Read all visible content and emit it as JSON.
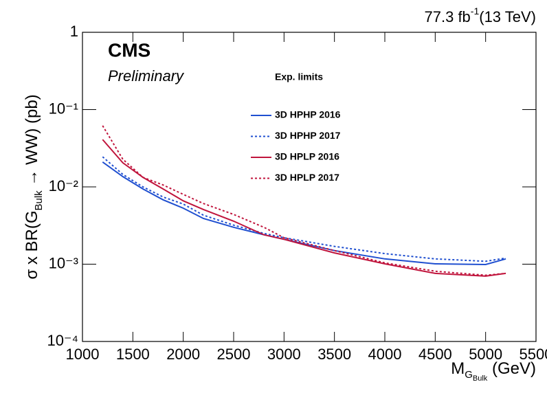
{
  "chart_data": {
    "type": "line",
    "lumi": [
      "77.3 fb",
      "-1",
      "(13 TeV)"
    ],
    "experiment": "CMS",
    "status": "Preliminary",
    "legend_title": "Exp. limits",
    "ylabel": [
      "σ x BR(G",
      "Bulk",
      " → WW) (pb)"
    ],
    "xlabel": [
      "M",
      "G",
      "Bulk",
      " (GeV)"
    ],
    "ylog": true,
    "xlim": [
      1000,
      5500
    ],
    "ylim": [
      0.0001,
      1
    ],
    "xticks": [
      1000,
      1500,
      2000,
      2500,
      3000,
      3500,
      4000,
      4500,
      5000,
      5500
    ],
    "yticks": [
      {
        "value": 0.0001,
        "label": "10⁻⁴"
      },
      {
        "value": 0.001,
        "label": "10⁻³"
      },
      {
        "value": 0.01,
        "label": "10⁻²"
      },
      {
        "value": 0.1,
        "label": "10⁻¹"
      },
      1
    ],
    "x": [
      1200,
      1400,
      1600,
      1800,
      2000,
      2200,
      2500,
      2800,
      3000,
      3500,
      4000,
      4500,
      5000,
      5200
    ],
    "series": [
      {
        "name": "3D HPHP 2016",
        "color": "#1f4fd0",
        "linestyle": "solid",
        "values": [
          0.021,
          0.0136,
          0.0094,
          0.0068,
          0.0053,
          0.0039,
          0.003,
          0.0024,
          0.0021,
          0.0015,
          0.00117,
          0.00101,
          0.00099,
          0.00117
        ]
      },
      {
        "name": "3D HPHP 2017",
        "color": "#1f4fd0",
        "linestyle": "dotted",
        "values": [
          0.0245,
          0.0145,
          0.01,
          0.0074,
          0.006,
          0.0043,
          0.0032,
          0.0025,
          0.0022,
          0.0017,
          0.00137,
          0.00117,
          0.00109,
          0.0012
        ]
      },
      {
        "name": "3D HPLP 2016",
        "color": "#c0143c",
        "linestyle": "solid",
        "values": [
          0.041,
          0.0205,
          0.0133,
          0.0094,
          0.0066,
          0.0051,
          0.0036,
          0.0024,
          0.0021,
          0.0014,
          0.00101,
          0.00076,
          0.0007,
          0.00076
        ]
      },
      {
        "name": "3D HPLP 2017",
        "color": "#c0143c",
        "linestyle": "dotted",
        "values": [
          0.062,
          0.0228,
          0.0133,
          0.0106,
          0.008,
          0.0061,
          0.0044,
          0.003,
          0.0022,
          0.0015,
          0.00104,
          0.00081,
          0.00072,
          0.00076
        ]
      }
    ]
  }
}
